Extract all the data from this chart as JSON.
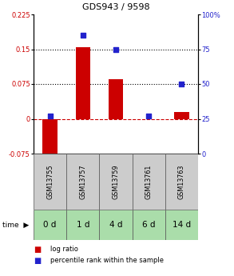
{
  "title": "GDS943 / 9598",
  "samples": [
    "GSM13755",
    "GSM13757",
    "GSM13759",
    "GSM13761",
    "GSM13763"
  ],
  "time_labels": [
    "0 d",
    "1 d",
    "4 d",
    "6 d",
    "14 d"
  ],
  "log_ratio": [
    -0.1,
    0.155,
    0.085,
    0.0,
    0.015
  ],
  "percentile": [
    27,
    85,
    75,
    27,
    50
  ],
  "ylim_left": [
    -0.075,
    0.225
  ],
  "ylim_right": [
    0,
    100
  ],
  "yticks_left": [
    -0.075,
    0,
    0.075,
    0.15,
    0.225
  ],
  "yticks_right": [
    0,
    25,
    50,
    75,
    100
  ],
  "ytick_labels_left": [
    "-0.075",
    "0",
    "0.075",
    "0.15",
    "0.225"
  ],
  "ytick_labels_right": [
    "0",
    "25",
    "50",
    "75",
    "100%"
  ],
  "hlines": [
    0.075,
    0.15
  ],
  "bar_color": "#cc0000",
  "dot_color": "#2222cc",
  "zero_line_color": "#cc0000",
  "left_label_color": "#cc0000",
  "right_label_color": "#2222cc",
  "gsm_bg_color": "#cccccc",
  "time_bg_color": "#aaddaa",
  "legend_log_ratio": "log ratio",
  "legend_percentile": "percentile rank within the sample"
}
